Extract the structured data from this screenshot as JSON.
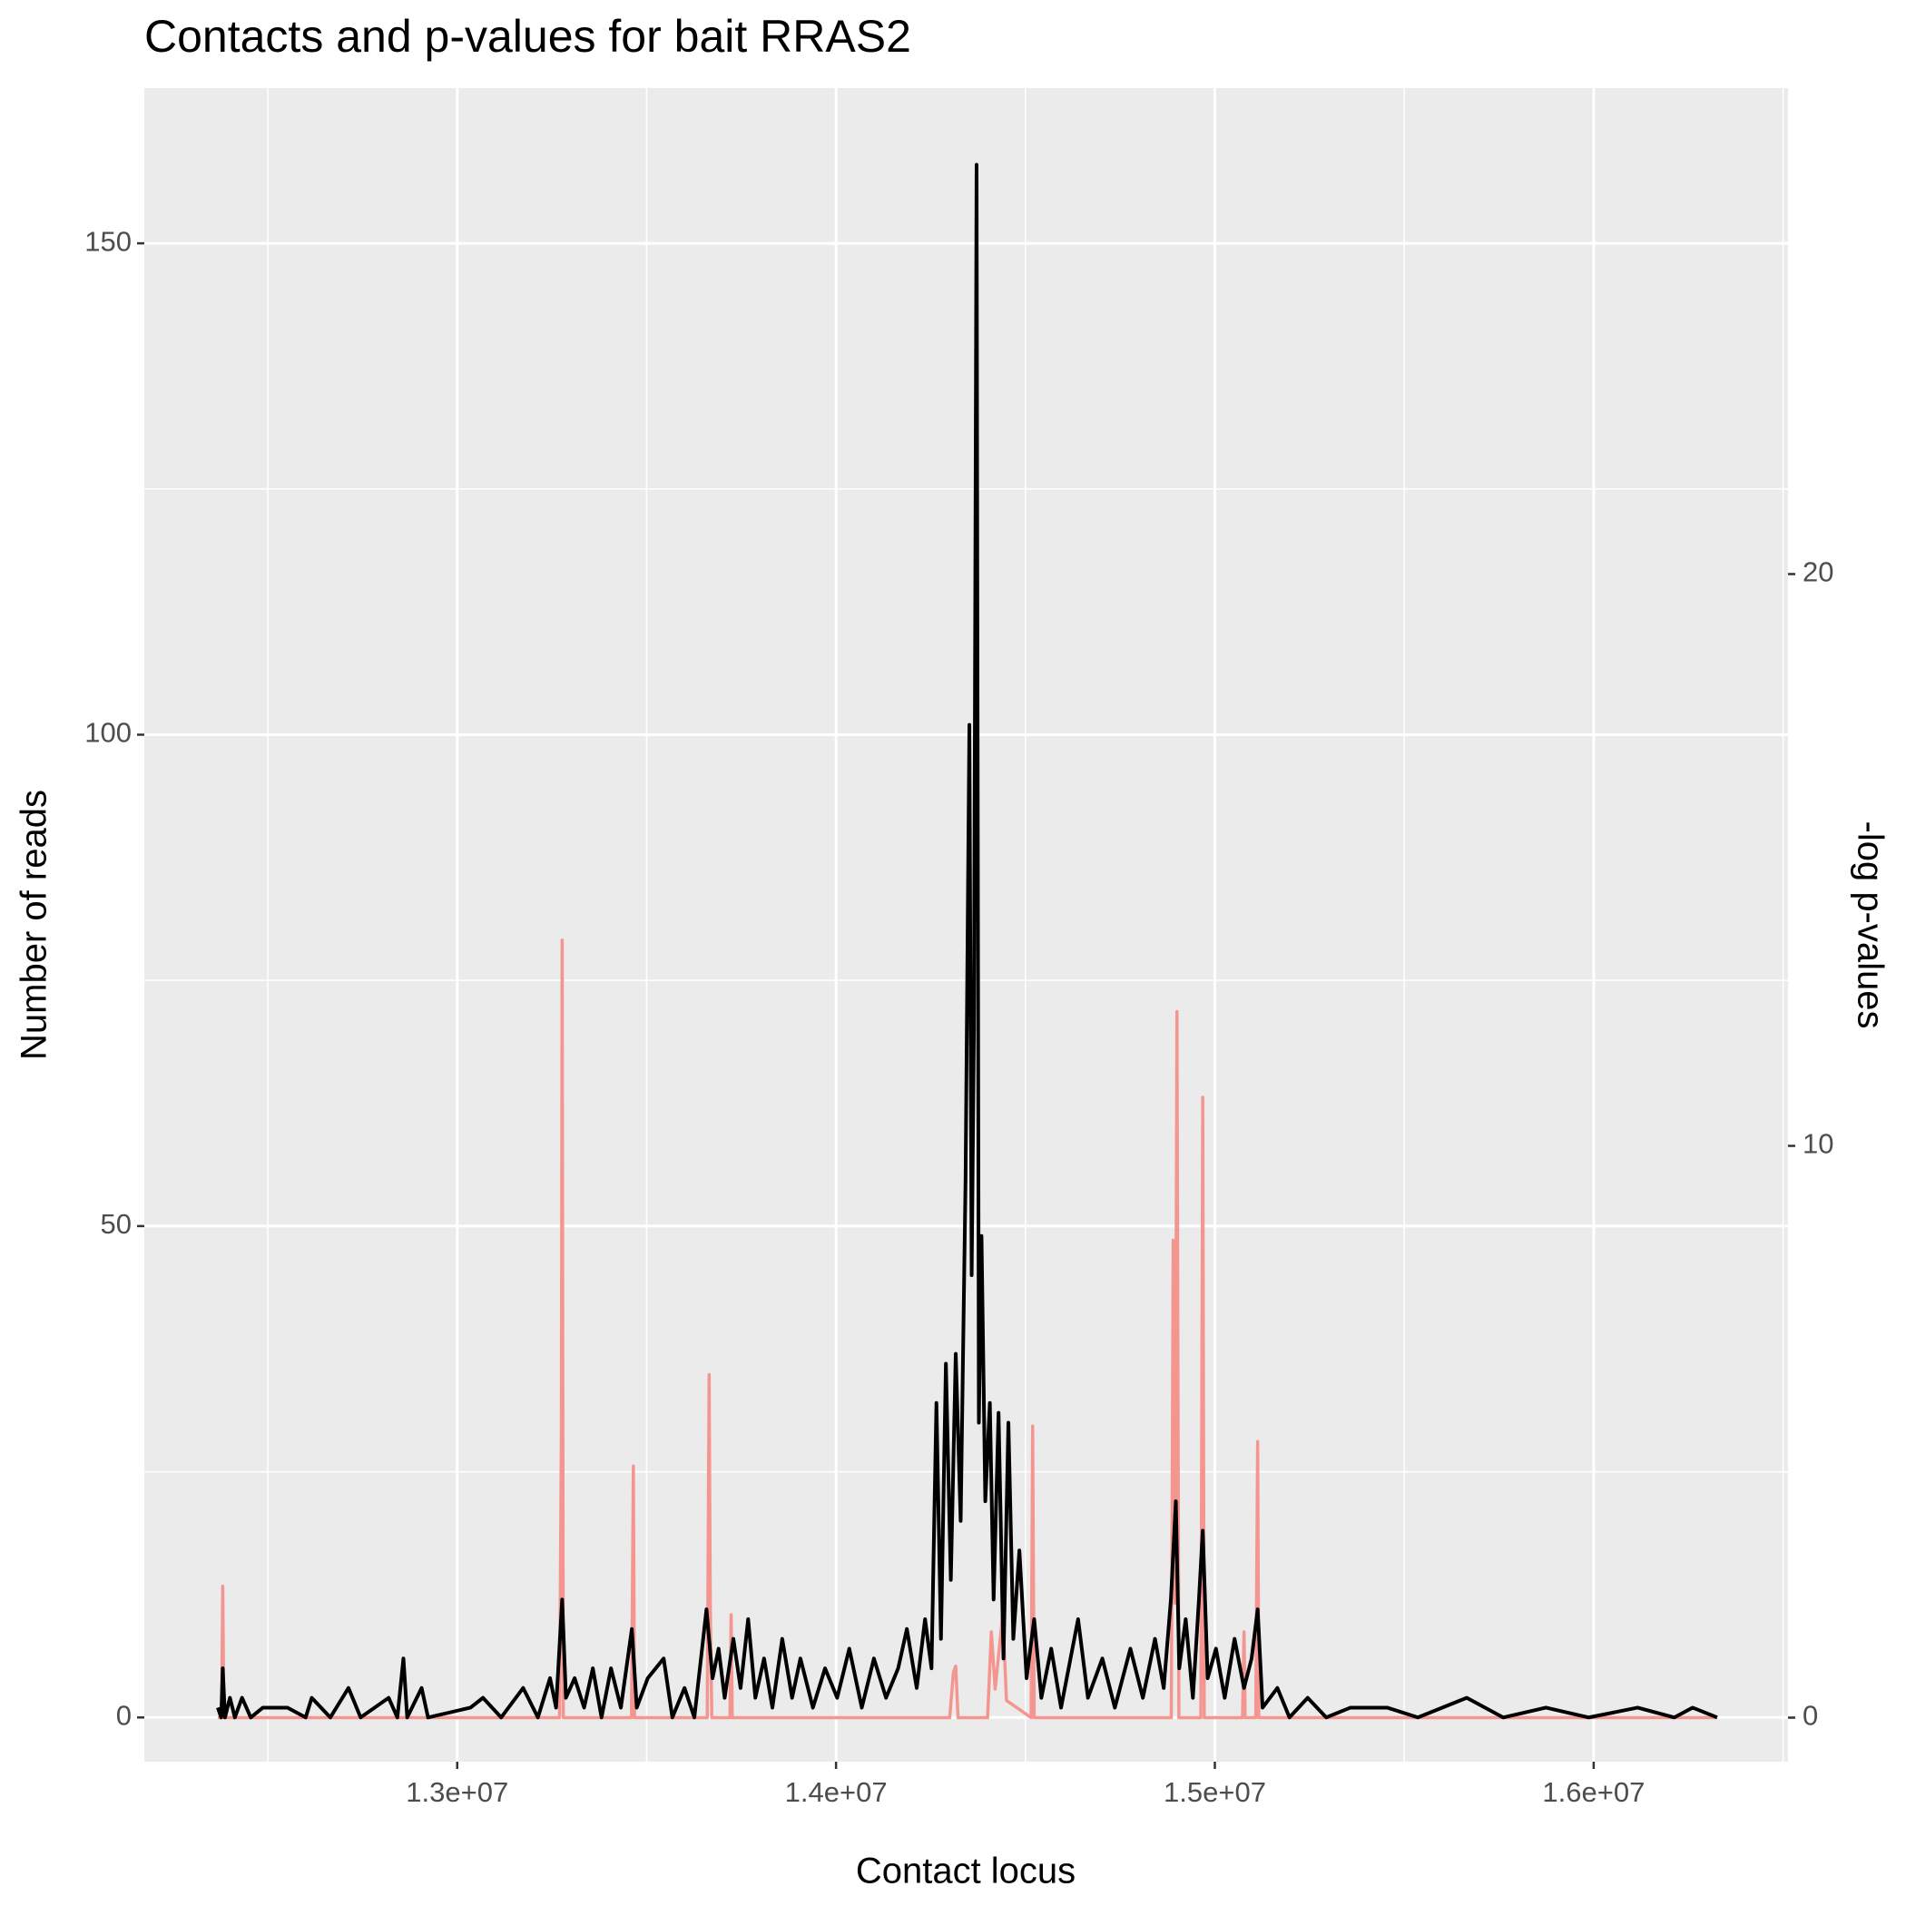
{
  "chart_data": {
    "type": "line",
    "title": "Contacts and p-values for bait RRAS2",
    "x_label": "Contact locus",
    "y_label": "Number of reads",
    "y2_label": "-log p-values",
    "xlim": [
      12174000,
      16513000
    ],
    "xticks": [
      {
        "value": 13000000,
        "label": "1.3e+07"
      },
      {
        "value": 14000000,
        "label": "1.4e+07"
      },
      {
        "value": 15000000,
        "label": "1.5e+07"
      },
      {
        "value": 16000000,
        "label": "1.6e+07"
      }
    ],
    "ylim": [
      -4.5,
      165.8
    ],
    "yticks": [
      0,
      50,
      100,
      150
    ],
    "y2lim": [
      -0.77,
      28.5
    ],
    "y2ticks": [
      0,
      10,
      20
    ],
    "grid": true,
    "minor_grid": true,
    "series": [
      {
        "color": "#f4968f",
        "axis": "y2",
        "x": [
          12368000,
          12378000,
          12381000,
          12384000,
          13270000,
          13275000,
          13277000,
          13280000,
          13460000,
          13465000,
          13468000,
          13660000,
          13665000,
          13668000,
          13672000,
          13720000,
          13723000,
          13726000,
          14300000,
          14310000,
          14316000,
          14322000,
          14400000,
          14410000,
          14420000,
          14440000,
          14450000,
          14515000,
          14519000,
          14523000,
          14885000,
          14890000,
          14895000,
          14900000,
          14905000,
          14963000,
          14968000,
          14972000,
          15073000,
          15077000,
          15080000,
          15108000,
          15113000,
          15116000,
          16326000
        ],
        "values": [
          0,
          0,
          2.3,
          0,
          0,
          5,
          13.6,
          0,
          0,
          4.4,
          0,
          0,
          6.0,
          2,
          0,
          0,
          1.8,
          0,
          0,
          0.8,
          0.9,
          0,
          0,
          1.5,
          0.5,
          1.8,
          0.3,
          0,
          5.1,
          0,
          0,
          8.35,
          2,
          12.35,
          0,
          0,
          10.85,
          0,
          0,
          1.5,
          0,
          0,
          4.83,
          0,
          0
        ]
      },
      {
        "color": "#000000",
        "x": [
          12368000,
          12377000,
          12381000,
          12387000,
          12400000,
          12413000,
          12432000,
          12455000,
          12487000,
          12552000,
          12600000,
          12616000,
          12665000,
          12713000,
          12745000,
          12819000,
          12842000,
          12858000,
          12868000,
          12906000,
          12923000,
          13035000,
          13068000,
          13116000,
          13174000,
          13213000,
          13245000,
          13261000,
          13277000,
          13287000,
          13310000,
          13335000,
          13358000,
          13381000,
          13406000,
          13432000,
          13461000,
          13474000,
          13503000,
          13545000,
          13568000,
          13600000,
          13626000,
          13658000,
          13674000,
          13690000,
          13706000,
          13729000,
          13748000,
          13768000,
          13787000,
          13810000,
          13832000,
          13858000,
          13884000,
          13906000,
          13939000,
          13971000,
          14003000,
          14035000,
          14068000,
          14100000,
          14132000,
          14164000,
          14187000,
          14213000,
          14235000,
          14252000,
          14265000,
          14277000,
          14290000,
          14303000,
          14316000,
          14329000,
          14342000,
          14352000,
          14358000,
          14364000,
          14371000,
          14377000,
          14384000,
          14394000,
          14406000,
          14416000,
          14429000,
          14442000,
          14455000,
          14468000,
          14484000,
          14503000,
          14523000,
          14542000,
          14568000,
          14594000,
          14639000,
          14665000,
          14703000,
          14736000,
          14777000,
          14810000,
          14842000,
          14865000,
          14884000,
          14897000,
          14906000,
          14923000,
          14942000,
          14958000,
          14968000,
          14981000,
          15003000,
          15026000,
          15052000,
          15077000,
          15097000,
          15113000,
          15126000,
          15165000,
          15197000,
          15245000,
          15294000,
          15358000,
          15455000,
          15536000,
          15665000,
          15761000,
          15874000,
          15987000,
          16116000,
          16213000,
          16261000,
          16326000
        ],
        "values": [
          1,
          0,
          5,
          0,
          2,
          0,
          2,
          0,
          1,
          1,
          0,
          2,
          0,
          3,
          0,
          2,
          0,
          6,
          0,
          3,
          0,
          1,
          2,
          0,
          3,
          0,
          4,
          1,
          12,
          2,
          4,
          1,
          5,
          0,
          5,
          1,
          9,
          1,
          4,
          6,
          0,
          3,
          0,
          11,
          4,
          7,
          2,
          8,
          3,
          10,
          2,
          6,
          1,
          8,
          2,
          6,
          1,
          5,
          2,
          7,
          1,
          6,
          2,
          5,
          9,
          3,
          10,
          5,
          32,
          8,
          36,
          14,
          37,
          20,
          55,
          101,
          45,
          70,
          158,
          30,
          49,
          22,
          32,
          12,
          31,
          6,
          30,
          8,
          17,
          4,
          10,
          2,
          7,
          1,
          10,
          2,
          6,
          1,
          7,
          2,
          8,
          3,
          12,
          22,
          5,
          10,
          2,
          12,
          19,
          4,
          7,
          2,
          8,
          3,
          6,
          11,
          1,
          3,
          0,
          2,
          0,
          1,
          1,
          0,
          2,
          0,
          1,
          0,
          1,
          0,
          1,
          0
        ]
      }
    ]
  }
}
